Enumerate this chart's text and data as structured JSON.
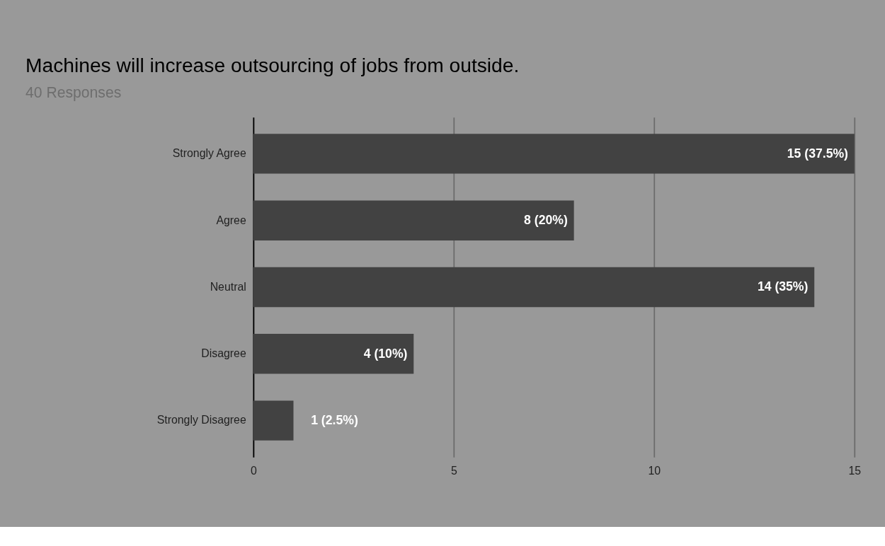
{
  "chart_data": {
    "type": "bar",
    "orientation": "horizontal",
    "title": "Machines will increase outsourcing of jobs from outside.",
    "subtitle": "40 Responses",
    "categories": [
      "Strongly Agree",
      "Agree",
      "Neutral",
      "Disagree",
      "Strongly Disagree"
    ],
    "values": [
      15,
      8,
      14,
      4,
      1
    ],
    "value_labels": [
      "15 (37.5%)",
      "8 (20%)",
      "14 (35%)",
      "4 (10%)",
      "1 (2.5%)"
    ],
    "color": "#424242",
    "xlim": [
      0,
      15
    ],
    "xticks": [
      0,
      5,
      10,
      15
    ],
    "grid": "x"
  }
}
